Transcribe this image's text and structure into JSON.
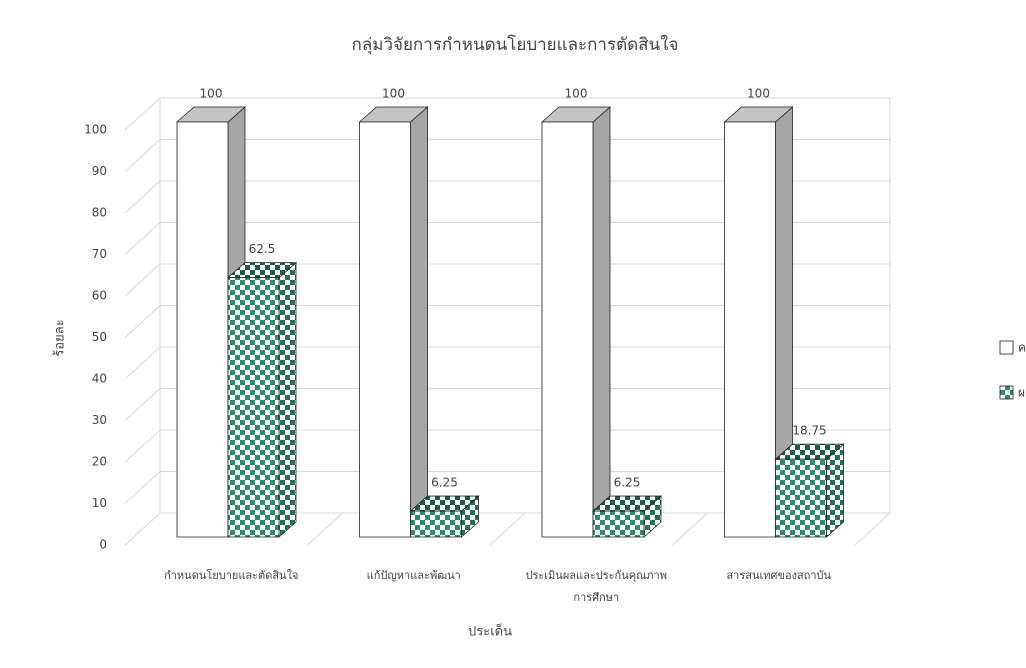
{
  "chart_data": {
    "type": "bar3d",
    "title": "กลุ่มวิจัยการกำหนดนโยบายและการตัดสินใจ",
    "y_label": "ร้อยละ",
    "x_label": "ประเด็น",
    "categories": [
      "กำหนดนโยบายและตัดสินใจ",
      "แก้ปัญหาและพัฒนา",
      "ประเมินผลและประกันคุณภาพ\nการศึกษา",
      "สารสนเทศของสถาบัน"
    ],
    "series": [
      {
        "name": "คาดหวัง",
        "color": "#ffffff",
        "values": [
          100,
          100,
          100,
          100
        ]
      },
      {
        "name": "ผลกระทบ",
        "color": "#2e8b6e",
        "pattern": "checkerboard",
        "values": [
          62.5,
          6.25,
          6.25,
          18.75
        ]
      }
    ],
    "ylim": [
      0,
      100
    ],
    "yticks": [
      0,
      10,
      20,
      30,
      40,
      50,
      60,
      70,
      80,
      90,
      100
    ],
    "grid": true,
    "legend": "right"
  }
}
